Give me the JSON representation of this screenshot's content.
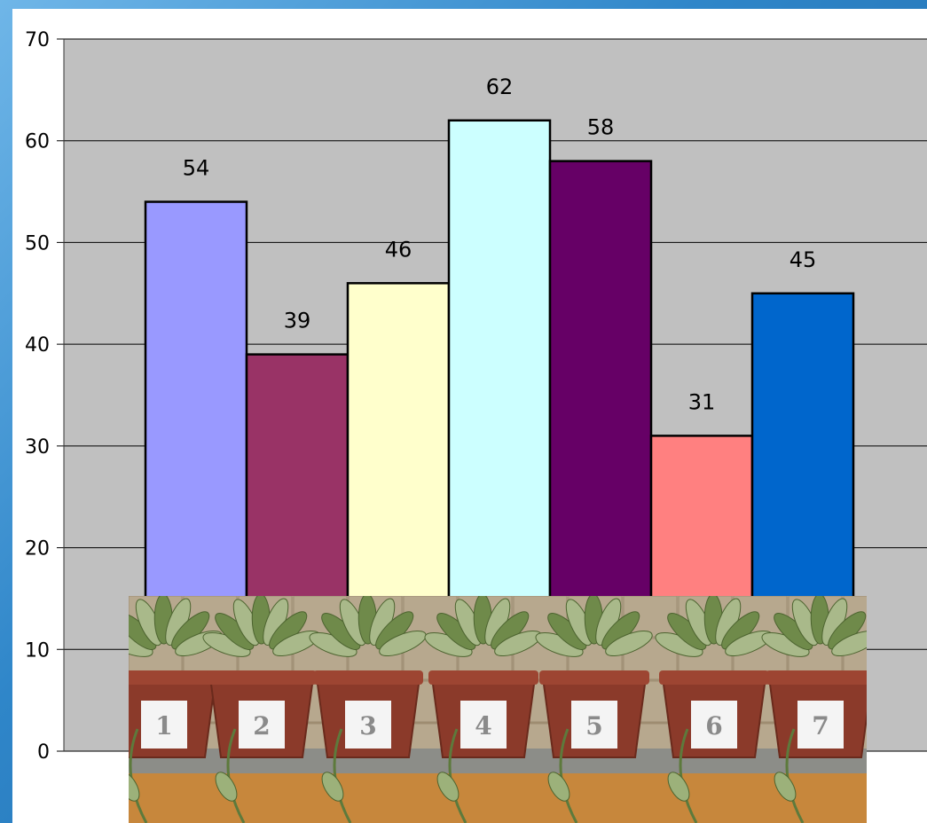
{
  "chart_data": {
    "type": "bar",
    "categories": [
      "1",
      "2",
      "3",
      "4",
      "5",
      "6",
      "7"
    ],
    "values": [
      54,
      39,
      46,
      62,
      58,
      31,
      45
    ],
    "colors": [
      "#9999ff",
      "#993366",
      "#ffffcc",
      "#ccffff",
      "#660066",
      "#ff8080",
      "#0066cc"
    ],
    "title": "",
    "xlabel": "",
    "ylabel": "",
    "ylim": [
      0,
      70
    ],
    "yticks": [
      "0",
      "10",
      "20",
      "30",
      "40",
      "50",
      "60",
      "70"
    ],
    "grid": true,
    "plot_background": "#c0c0c0"
  },
  "photo": {
    "pot_labels": [
      "1",
      "2",
      "3",
      "4",
      "5",
      "6",
      "7"
    ]
  }
}
